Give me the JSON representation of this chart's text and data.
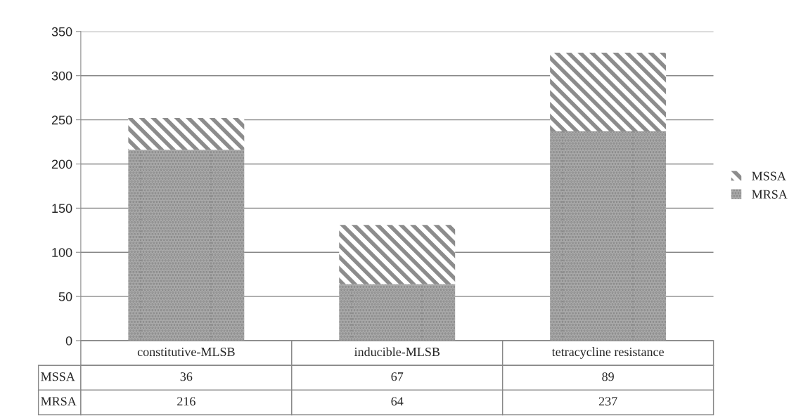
{
  "chart_data": {
    "type": "bar",
    "stacked": true,
    "categories": [
      "constitutive-MLSB",
      "inducible-MLSB",
      "tetracycline resistance"
    ],
    "series": [
      {
        "name": "MRSA",
        "color": "#8a8a8a",
        "values": [
          216,
          64,
          237
        ]
      },
      {
        "name": "MSSA",
        "color": "#8c8c8c",
        "values": [
          36,
          67,
          89
        ]
      }
    ],
    "ylim": [
      0,
      350
    ],
    "yticks": [
      0,
      50,
      100,
      150,
      200,
      250,
      300,
      350
    ],
    "grid": "y",
    "legend": "right",
    "data_labels": true
  }
}
